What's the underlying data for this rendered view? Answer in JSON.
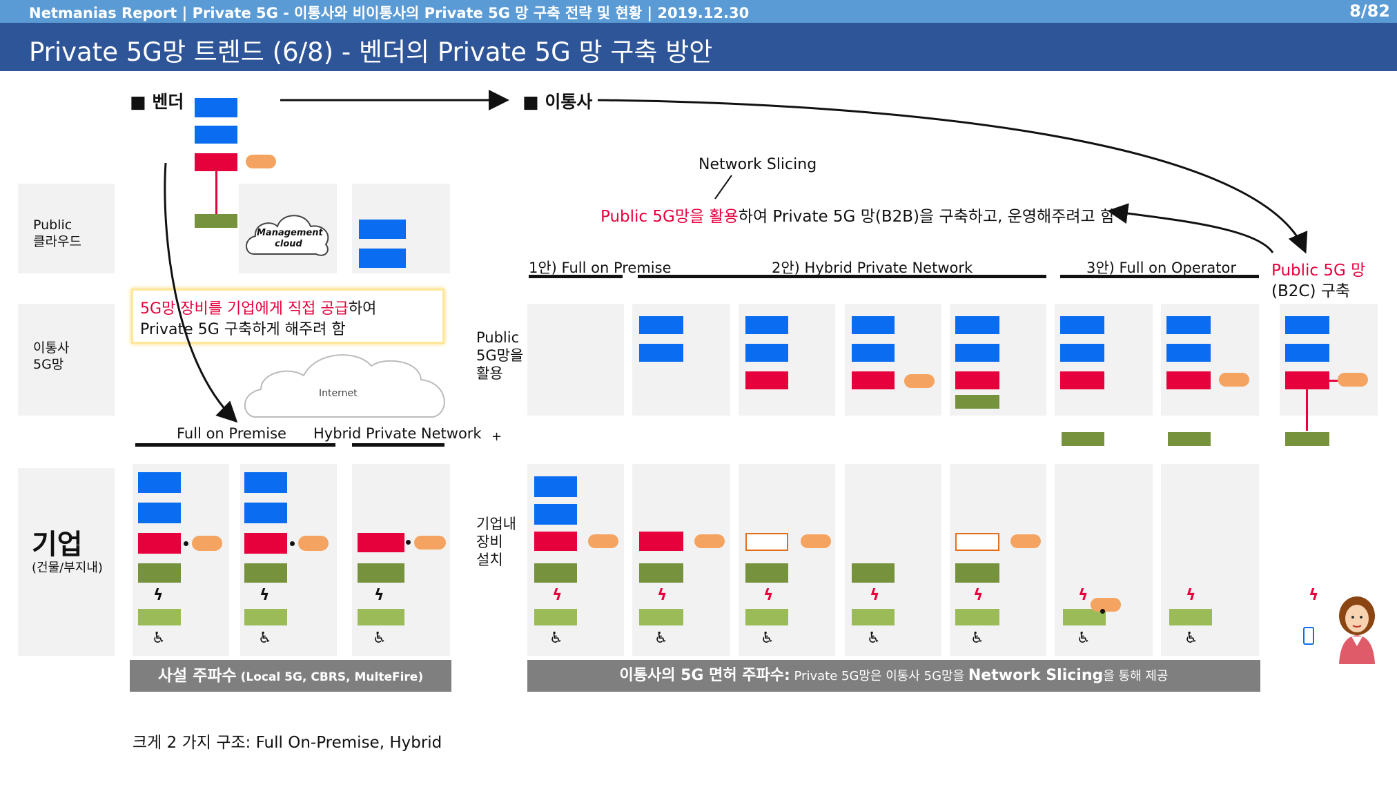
{
  "header": {
    "report_title": "Netmanias Report | Private 5G - 이통사와 비이통사의 Private 5G 망 구축 전략 및 현황  | 2019.12.30",
    "page": "8/82",
    "slide_title": "Private 5G망 트렌드 (6/8) - 벤더의 Private 5G 망 구축 방안"
  },
  "sections": {
    "vendor": "■ 벤더",
    "operator": "■ 이통사"
  },
  "row_labels": {
    "public_cloud": [
      "Public",
      "클라우드"
    ],
    "operator_5g": [
      "이통사",
      "5G망"
    ],
    "enterprise_big": "기업",
    "enterprise_small": "(건물/부지내)"
  },
  "mid_labels": {
    "public_5g_use": [
      "Public",
      "5G망을",
      "활용"
    ],
    "onsite_equipment": [
      "기업내",
      "장비",
      "설치"
    ],
    "plus": "+"
  },
  "cloud_labels": {
    "management": [
      "Management",
      "cloud"
    ],
    "internet": "Internet"
  },
  "callout": {
    "red_part": "5G망 장비를 기업에게 직접 공급",
    "rest_line1": "하여",
    "line2": "Private 5G 구축하게 해주려 함"
  },
  "vendor_options": {
    "full_on_premise": "Full on Premise",
    "hybrid": "Hybrid Private Network"
  },
  "network_slicing": {
    "label": "Network Slicing",
    "red_part": "Public 5G망을 활용",
    "rest": "하여 Private 5G 망(B2B)을 구축하고, 운영해주려고 함"
  },
  "operator_options": {
    "opt1": "1안) Full on Premise",
    "opt2": "2안) Hybrid Private Network",
    "opt3": "3안) Full on Operator"
  },
  "public_5g": {
    "line1": "Public 5G 망",
    "line2": "(B2C) 구축"
  },
  "footers": {
    "vendor_bold": "사설 주파수",
    "vendor_small": " (Local 5G, CBRS, MulteFire)",
    "operator_bold": "이통사의 5G 면허 주파수:",
    "operator_mid1": " Private 5G망은 이통사 5G망을 ",
    "operator_bold2": "Network Slicing",
    "operator_mid2": "을 통해 제공"
  },
  "bottom_note": "크게 2 가지 구조: Full On-Premise, Hybrid",
  "colors": {
    "core_blue": "#0a6cf0",
    "upf_red": "#e6003c",
    "ran_green": "#76923c",
    "ue_lightgreen": "#9bbb59",
    "mec_orange": "#f4a460",
    "header_blue": "#5b9bd5",
    "title_navy": "#2e5597",
    "footer_gray": "#7f7f7f"
  }
}
